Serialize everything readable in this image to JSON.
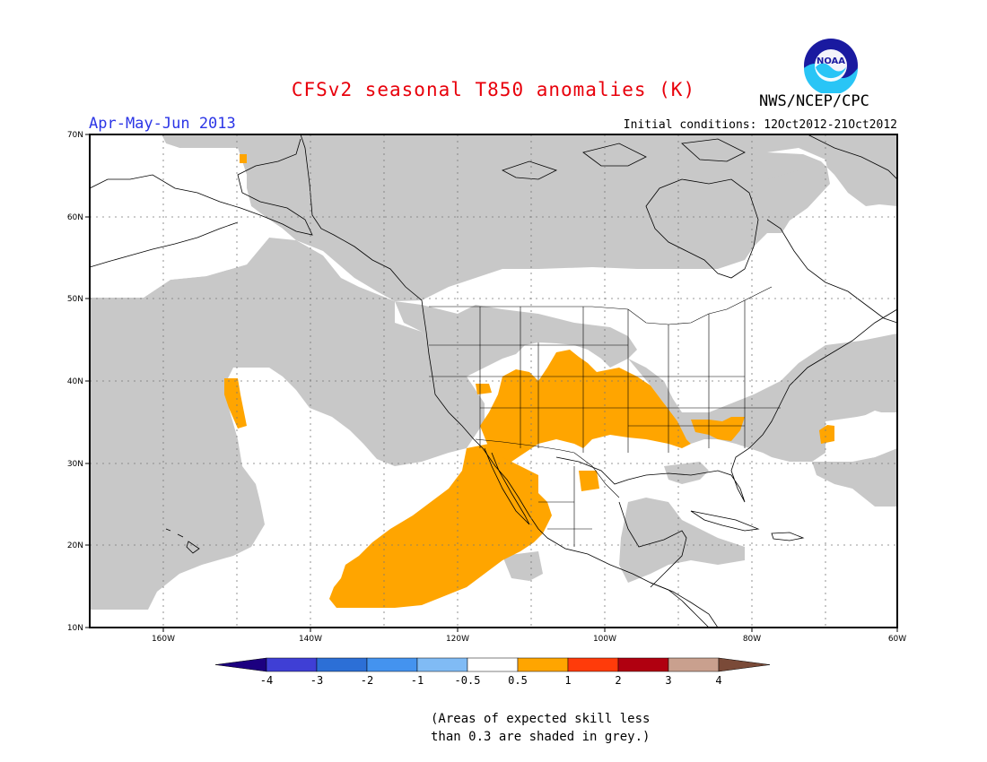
{
  "header": {
    "title": "CFSv2 seasonal T850 anomalies (K)",
    "organization": "NWS/NCEP/CPC",
    "logo_text": "NOAA",
    "season": "Apr-May-Jun 2013",
    "initial_conditions": "Initial conditions: 12Oct2012-21Oct2012"
  },
  "axes": {
    "lat_labels": [
      "70N",
      "60N",
      "50N",
      "40N",
      "30N",
      "20N",
      "10N"
    ],
    "lon_labels": [
      "160W",
      "140W",
      "120W",
      "100W",
      "80W",
      "60W"
    ]
  },
  "colorbar": {
    "labels": [
      "-4",
      "-3",
      "-2",
      "-1",
      "-0.5",
      "0.5",
      "1",
      "2",
      "3",
      "4"
    ],
    "colors": [
      "#1c0080",
      "#3f3fd5",
      "#2c6fd6",
      "#4493ef",
      "#80bbf5",
      "#ffffff",
      "#ffa500",
      "#ff3b0a",
      "#b00010",
      "#c9a08e",
      "#7a4a38"
    ]
  },
  "colors": {
    "skill_grey": "#c8c8c8",
    "anomaly_positive": "#ffa500"
  },
  "note": {
    "line1": "(Areas of expected skill less",
    "line2": "than 0.3 are shaded in grey.)"
  }
}
